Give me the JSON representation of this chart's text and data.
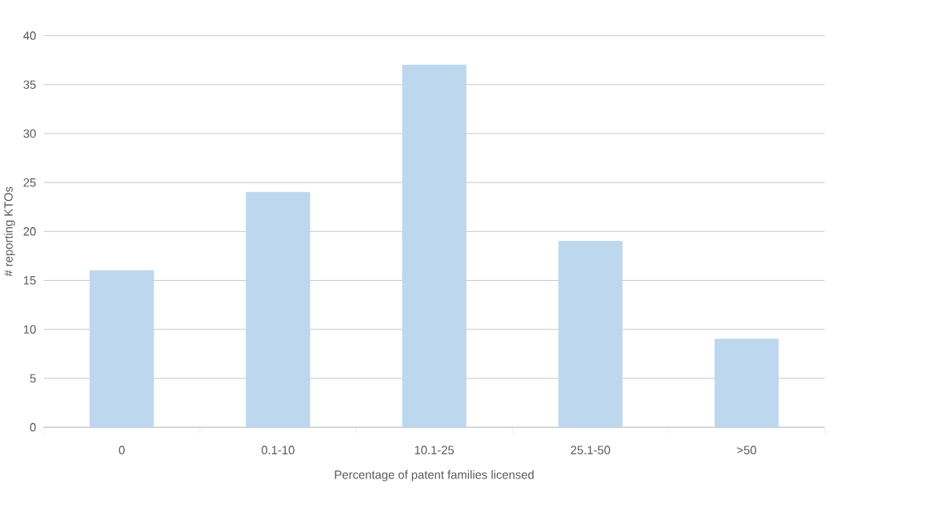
{
  "chart_data": {
    "type": "bar",
    "xlabel": "Percentage of patent families licensed",
    "ylabel": "# reporting KTOs",
    "categories": [
      "0",
      "0.1-10",
      "10.1-25",
      "25.1-50",
      ">50"
    ],
    "values": [
      16,
      24,
      37,
      19,
      9
    ],
    "color": "#bdd7ee",
    "ylim": [
      0,
      40
    ],
    "yticks": [
      0,
      5,
      10,
      15,
      20,
      25,
      30,
      35,
      40
    ],
    "grid": "y"
  }
}
